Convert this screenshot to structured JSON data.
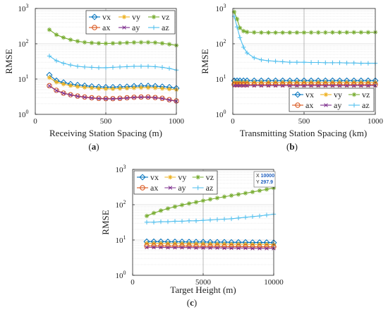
{
  "chart_data": [
    {
      "type": "line",
      "caption": "(a)",
      "xlabel": "Receiving Station Spacing (m)",
      "ylabel": "RMSE",
      "yscale": "log",
      "xlim": [
        0,
        1000
      ],
      "ylim": [
        1,
        1000
      ],
      "xticks": [
        "0",
        "500",
        "1000"
      ],
      "yticks": [
        "10^0",
        "10^1",
        "10^2",
        "10^3"
      ],
      "grid": true,
      "legend": "top-right, 3 columns",
      "x": [
        100,
        150,
        200,
        250,
        300,
        350,
        400,
        450,
        500,
        550,
        600,
        650,
        700,
        750,
        800,
        850,
        900,
        950,
        1000
      ],
      "series": [
        {
          "name": "vx",
          "color": "#0072BD",
          "marker": "diamond",
          "values": [
            13.0,
            9.0,
            8.0,
            7.2,
            6.8,
            6.5,
            6.2,
            6.0,
            5.9,
            5.9,
            6.0,
            6.1,
            6.3,
            6.4,
            6.4,
            6.3,
            6.1,
            5.9,
            5.5
          ]
        },
        {
          "name": "vy",
          "color": "#EDB120",
          "marker": "star",
          "values": [
            11.0,
            8.2,
            7.2,
            6.5,
            6.1,
            5.8,
            5.6,
            5.4,
            5.3,
            5.3,
            5.4,
            5.5,
            5.6,
            5.7,
            5.7,
            5.6,
            5.4,
            5.2,
            5.0
          ]
        },
        {
          "name": "vz",
          "color": "#77AC30",
          "marker": "asterisk",
          "values": [
            250,
            180,
            150,
            130,
            118,
            110,
            106,
            103,
            102,
            103,
            105,
            107,
            109,
            110,
            110,
            108,
            103,
            97,
            90
          ]
        },
        {
          "name": "ax",
          "color": "#D95319",
          "marker": "circle",
          "values": [
            6.5,
            4.8,
            4.0,
            3.6,
            3.3,
            3.1,
            2.95,
            2.85,
            2.8,
            2.8,
            2.85,
            2.95,
            3.05,
            3.1,
            3.1,
            3.0,
            2.85,
            2.6,
            2.4
          ]
        },
        {
          "name": "ay",
          "color": "#7E2F8E",
          "marker": "x",
          "values": [
            6.4,
            4.7,
            3.95,
            3.55,
            3.25,
            3.05,
            2.9,
            2.8,
            2.75,
            2.75,
            2.8,
            2.9,
            3.0,
            3.05,
            3.05,
            2.95,
            2.8,
            2.55,
            2.35
          ]
        },
        {
          "name": "az",
          "color": "#4DBEEE",
          "marker": "plus",
          "values": [
            45,
            33,
            28,
            25,
            23,
            22,
            21.5,
            21,
            21,
            21.5,
            22,
            22.5,
            23,
            23,
            23,
            22.5,
            21.5,
            20,
            18
          ]
        }
      ]
    },
    {
      "type": "line",
      "caption": "(b)",
      "xlabel": "Transmitting Station Spacing (km)",
      "ylabel": "RMSE",
      "yscale": "log",
      "xlim": [
        0,
        1000
      ],
      "ylim": [
        1,
        1000
      ],
      "xticks": [
        "0",
        "500",
        "1000"
      ],
      "yticks": [
        "10^0",
        "10^1",
        "10^2",
        "10^3"
      ],
      "grid": true,
      "legend": "bottom-right, 3 columns",
      "x": [
        10,
        30,
        50,
        75,
        100,
        150,
        200,
        250,
        300,
        350,
        400,
        450,
        500,
        550,
        600,
        650,
        700,
        750,
        800,
        850,
        900,
        950,
        1000
      ],
      "series": [
        {
          "name": "vx",
          "color": "#0072BD",
          "marker": "diamond",
          "values": [
            9,
            9,
            9,
            9,
            9,
            9,
            9,
            9,
            9,
            9,
            9,
            9,
            9,
            9,
            9,
            9,
            9,
            9,
            9,
            9,
            9,
            9,
            9
          ]
        },
        {
          "name": "vy",
          "color": "#EDB120",
          "marker": "star",
          "values": [
            8,
            8,
            8,
            8,
            8,
            8,
            8,
            8,
            8,
            8,
            8,
            8,
            8,
            8,
            8,
            8,
            8,
            8,
            8,
            8,
            8,
            8,
            8
          ]
        },
        {
          "name": "vz",
          "color": "#77AC30",
          "marker": "asterisk",
          "values": [
            800,
            500,
            280,
            230,
            215,
            210,
            208,
            207,
            207,
            207,
            208,
            208,
            208,
            209,
            209,
            209,
            210,
            210,
            210,
            211,
            211,
            211,
            212
          ]
        },
        {
          "name": "ax",
          "color": "#D95319",
          "marker": "circle",
          "values": [
            7,
            7,
            7,
            7,
            7,
            7,
            7,
            7,
            7,
            7,
            7,
            7,
            7,
            7,
            7,
            7,
            7,
            7,
            7,
            7,
            7,
            7,
            7
          ]
        },
        {
          "name": "ay",
          "color": "#7E2F8E",
          "marker": "x",
          "values": [
            6.5,
            6.5,
            6.5,
            6.5,
            6.5,
            6.5,
            6.5,
            6.5,
            6.5,
            6.5,
            6.5,
            6.5,
            6.5,
            6.5,
            6.5,
            6.5,
            6.5,
            6.5,
            6.5,
            6.5,
            6.5,
            6.5,
            6.5
          ]
        },
        {
          "name": "az",
          "color": "#4DBEEE",
          "marker": "plus",
          "values": [
            600,
            300,
            150,
            80,
            55,
            40,
            35,
            33,
            32,
            31,
            30,
            30,
            30,
            29.5,
            29.5,
            29,
            29,
            29,
            28.5,
            28.5,
            28,
            28,
            28
          ]
        }
      ]
    },
    {
      "type": "line",
      "caption": "(c)",
      "xlabel": "Target Height (m)",
      "ylabel": "RMSE",
      "yscale": "log",
      "xlim": [
        0,
        10000
      ],
      "ylim": [
        1,
        1000
      ],
      "xticks": [
        "0",
        "5000",
        "10000"
      ],
      "yticks": [
        "10^0",
        "10^1",
        "10^2",
        "10^3"
      ],
      "grid": true,
      "legend": "top-left, 3 columns",
      "datatip": {
        "x_label": "X",
        "x_value": "10000",
        "y_label": "Y",
        "y_value": "297.9"
      },
      "x": [
        1000,
        1500,
        2000,
        2500,
        3000,
        3500,
        4000,
        4500,
        5000,
        5500,
        6000,
        6500,
        7000,
        7500,
        8000,
        8500,
        9000,
        9500,
        10000
      ],
      "series": [
        {
          "name": "vx",
          "color": "#0072BD",
          "marker": "diamond",
          "values": [
            9.0,
            9.0,
            9.0,
            8.9,
            8.9,
            8.9,
            8.8,
            8.8,
            8.8,
            8.7,
            8.7,
            8.7,
            8.6,
            8.6,
            8.6,
            8.5,
            8.5,
            8.5,
            8.4
          ]
        },
        {
          "name": "vy",
          "color": "#EDB120",
          "marker": "star",
          "values": [
            8.0,
            8.0,
            8.0,
            7.9,
            7.9,
            7.9,
            7.8,
            7.8,
            7.8,
            7.7,
            7.7,
            7.7,
            7.6,
            7.6,
            7.6,
            7.5,
            7.5,
            7.5,
            7.4
          ]
        },
        {
          "name": "vz",
          "color": "#77AC30",
          "marker": "asterisk",
          "values": [
            48,
            58,
            68,
            78,
            88,
            98,
            108,
            118,
            130,
            142,
            155,
            168,
            182,
            196,
            212,
            230,
            250,
            272,
            297.9
          ]
        },
        {
          "name": "ax",
          "color": "#D95319",
          "marker": "circle",
          "values": [
            6.8,
            6.8,
            6.8,
            6.7,
            6.7,
            6.7,
            6.7,
            6.6,
            6.6,
            6.6,
            6.6,
            6.5,
            6.5,
            6.5,
            6.5,
            6.4,
            6.4,
            6.4,
            6.4
          ]
        },
        {
          "name": "ay",
          "color": "#7E2F8E",
          "marker": "x",
          "values": [
            6.2,
            6.2,
            6.2,
            6.1,
            6.1,
            6.1,
            6.1,
            6.0,
            6.0,
            6.0,
            6.0,
            5.9,
            5.9,
            5.9,
            5.9,
            5.8,
            5.8,
            5.8,
            5.8
          ]
        },
        {
          "name": "az",
          "color": "#4DBEEE",
          "marker": "plus",
          "values": [
            32,
            32,
            33,
            33,
            34,
            34,
            35,
            35,
            36,
            37,
            38,
            39,
            40,
            42,
            44,
            46,
            48,
            51,
            54
          ]
        }
      ]
    }
  ]
}
